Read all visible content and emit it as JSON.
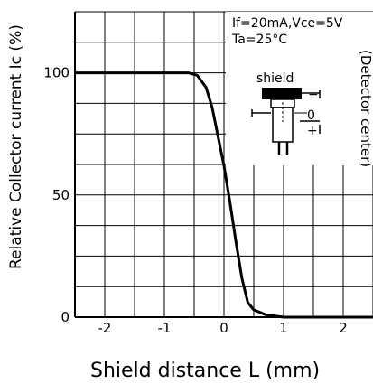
{
  "chart_data": {
    "type": "line",
    "xlabel": "Shield distance L (mm)",
    "ylabel": "Relative Collector current Ic (%)",
    "xlim": [
      -2.5,
      2.5
    ],
    "ylim": [
      0,
      125
    ],
    "x_ticks": [
      "-2",
      "-1",
      "0",
      "1",
      "2"
    ],
    "y_ticks": [
      "0",
      "50",
      "100"
    ],
    "grid": true,
    "annotations": {
      "conditions_line1": "If=20mA,Vce=5V",
      "conditions_line2": "Ta=25°C",
      "shield": "shield",
      "detector_center": "(Detector center)",
      "minus": "−",
      "zero": "0",
      "plus": "+"
    },
    "series": [
      {
        "x": [
          -2.5,
          -0.9,
          -0.6,
          -0.45,
          -0.3,
          -0.2,
          -0.1,
          0.0,
          0.1,
          0.2,
          0.3,
          0.4,
          0.5,
          0.7,
          1.0,
          2.5
        ],
        "y": [
          100,
          100,
          100,
          99,
          94,
          86,
          74,
          62,
          47,
          31,
          16,
          6,
          3,
          1,
          0,
          0
        ]
      }
    ]
  }
}
